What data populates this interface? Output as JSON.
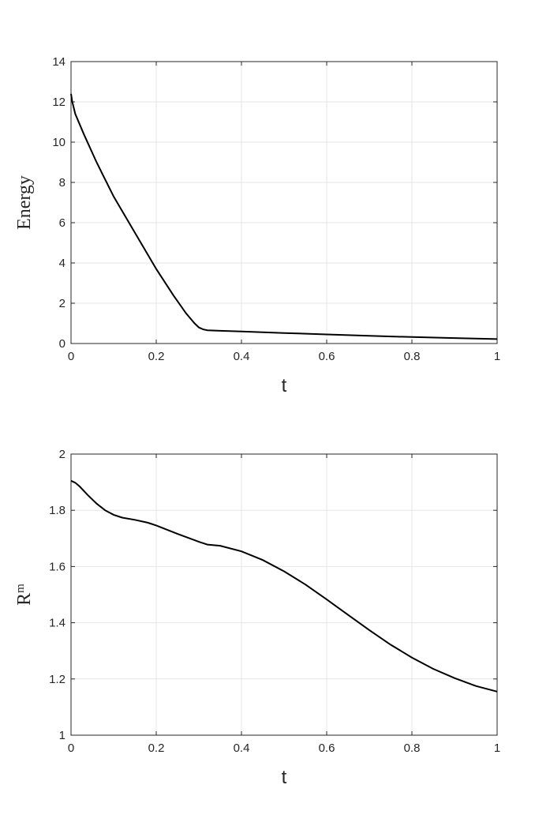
{
  "chart_data": [
    {
      "type": "line",
      "title": "",
      "xlabel": "t",
      "ylabel": "Energy",
      "xlim": [
        0,
        1
      ],
      "ylim": [
        0,
        14
      ],
      "xticks": [
        0,
        0.2,
        0.4,
        0.6,
        0.8,
        1
      ],
      "xtick_labels": [
        "0",
        "0.2",
        "0.4",
        "0.6",
        "0.8",
        "1"
      ],
      "yticks": [
        0,
        2,
        4,
        6,
        8,
        10,
        12,
        14
      ],
      "ytick_labels": [
        "0",
        "2",
        "4",
        "6",
        "8",
        "10",
        "12",
        "14"
      ],
      "grid": true,
      "legend": "none",
      "line_color": "#000000",
      "x": [
        0,
        0.003,
        0.01,
        0.03,
        0.06,
        0.1,
        0.15,
        0.2,
        0.24,
        0.27,
        0.29,
        0.3,
        0.31,
        0.32,
        0.35,
        0.4,
        0.5,
        0.6,
        0.7,
        0.8,
        0.9,
        1.0
      ],
      "y": [
        12.4,
        12.0,
        11.4,
        10.4,
        9.0,
        7.3,
        5.5,
        3.7,
        2.4,
        1.5,
        1.0,
        0.8,
        0.7,
        0.66,
        0.63,
        0.6,
        0.52,
        0.45,
        0.38,
        0.32,
        0.27,
        0.22
      ]
    },
    {
      "type": "line",
      "title": "",
      "xlabel": "t",
      "ylabel": "R",
      "ylabel_superscript": "m",
      "xlim": [
        0,
        1
      ],
      "ylim": [
        1,
        2
      ],
      "xticks": [
        0,
        0.2,
        0.4,
        0.6,
        0.8,
        1
      ],
      "xtick_labels": [
        "0",
        "0.2",
        "0.4",
        "0.6",
        "0.8",
        "1"
      ],
      "yticks": [
        1,
        1.2,
        1.4,
        1.6,
        1.8,
        2
      ],
      "ytick_labels": [
        "1",
        "1.2",
        "1.4",
        "1.6",
        "1.8",
        "2"
      ],
      "grid": true,
      "legend": "none",
      "line_color": "#000000",
      "x": [
        0,
        0.01,
        0.02,
        0.04,
        0.06,
        0.08,
        0.1,
        0.12,
        0.15,
        0.18,
        0.2,
        0.25,
        0.3,
        0.32,
        0.35,
        0.4,
        0.45,
        0.5,
        0.55,
        0.6,
        0.65,
        0.7,
        0.75,
        0.8,
        0.85,
        0.9,
        0.95,
        1.0
      ],
      "y": [
        1.905,
        1.898,
        1.885,
        1.853,
        1.824,
        1.8,
        1.784,
        1.774,
        1.766,
        1.756,
        1.746,
        1.716,
        1.688,
        1.678,
        1.674,
        1.654,
        1.623,
        1.583,
        1.536,
        1.483,
        1.428,
        1.374,
        1.322,
        1.276,
        1.236,
        1.203,
        1.175,
        1.155
      ]
    }
  ]
}
